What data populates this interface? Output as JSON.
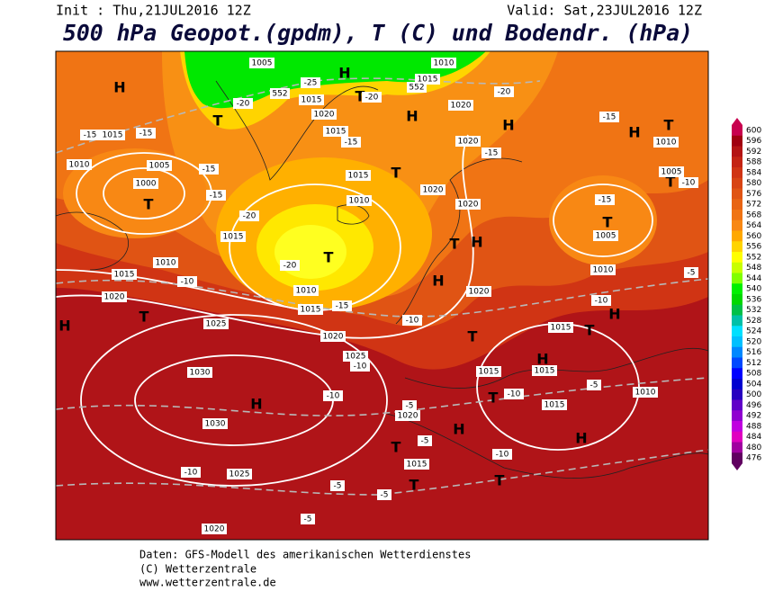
{
  "header": {
    "init": "Init : Thu,21JUL2016 12Z",
    "valid": "Valid: Sat,23JUL2016 12Z",
    "title": "500 hPa Geopot.(gpdm), T (C) und Bodendr. (hPa)"
  },
  "colorbar": {
    "levels": [
      600,
      596,
      592,
      588,
      584,
      580,
      576,
      572,
      568,
      564,
      560,
      556,
      552,
      548,
      544,
      540,
      536,
      532,
      528,
      524,
      520,
      516,
      512,
      508,
      504,
      500,
      496,
      492,
      488,
      484,
      480,
      476
    ],
    "colors": [
      "#c8004e",
      "#a00010",
      "#b41414",
      "#c42414",
      "#d03414",
      "#d84414",
      "#e05414",
      "#e86414",
      "#f07414",
      "#f88814",
      "#ffa800",
      "#ffd400",
      "#ffff00",
      "#c8ff00",
      "#80ff00",
      "#00f000",
      "#00d800",
      "#00c048",
      "#00c0a8",
      "#00e0ff",
      "#00c0ff",
      "#0088ff",
      "#0048ff",
      "#0000ff",
      "#0000d0",
      "#2800c0",
      "#6000c8",
      "#9000d0",
      "#c000e0",
      "#e000c0",
      "#a000a0",
      "#600060"
    ]
  },
  "map_labels": {
    "centers": [
      "H",
      "T",
      "H",
      "T",
      "H",
      "H",
      "T",
      "H",
      "T",
      "T",
      "T",
      "T",
      "T",
      "H",
      "T",
      "H",
      "T",
      "H",
      "H",
      "T",
      "H",
      "T",
      "H",
      "T",
      "H",
      "T",
      "H",
      "T",
      "T"
    ],
    "pressure": [
      "1005",
      "1010",
      "1015",
      "1020",
      "1005",
      "1000",
      "1010",
      "1015",
      "1020",
      "1015",
      "1015",
      "1015",
      "1010",
      "1020",
      "1020",
      "1020",
      "1015",
      "1010",
      "1015",
      "1020",
      "1010",
      "1015",
      "1020",
      "1010",
      "1005",
      "1010",
      "1005",
      "1025",
      "1020",
      "1025",
      "1030",
      "1030",
      "1025",
      "1020",
      "1020",
      "1015",
      "1015",
      "1015",
      "1015",
      "1015",
      "1010",
      "552",
      "552"
    ],
    "temperature": [
      "-15",
      "-15",
      "-20",
      "-25",
      "-20",
      "-15",
      "-15",
      "-20",
      "-20",
      "-15",
      "-10",
      "-15",
      "-15",
      "-20",
      "-15",
      "-15",
      "-10",
      "-10",
      "-10",
      "-10",
      "-10",
      "-10",
      "-10",
      "-5",
      "-5",
      "-5",
      "-5",
      "-5",
      "-5",
      "-10",
      "-5"
    ]
  },
  "footer": {
    "line1": "Daten: GFS-Modell des amerikanischen Wetterdienstes",
    "line2": "(C) Wetterzentrale",
    "line3": "www.wetterzentrale.de"
  }
}
